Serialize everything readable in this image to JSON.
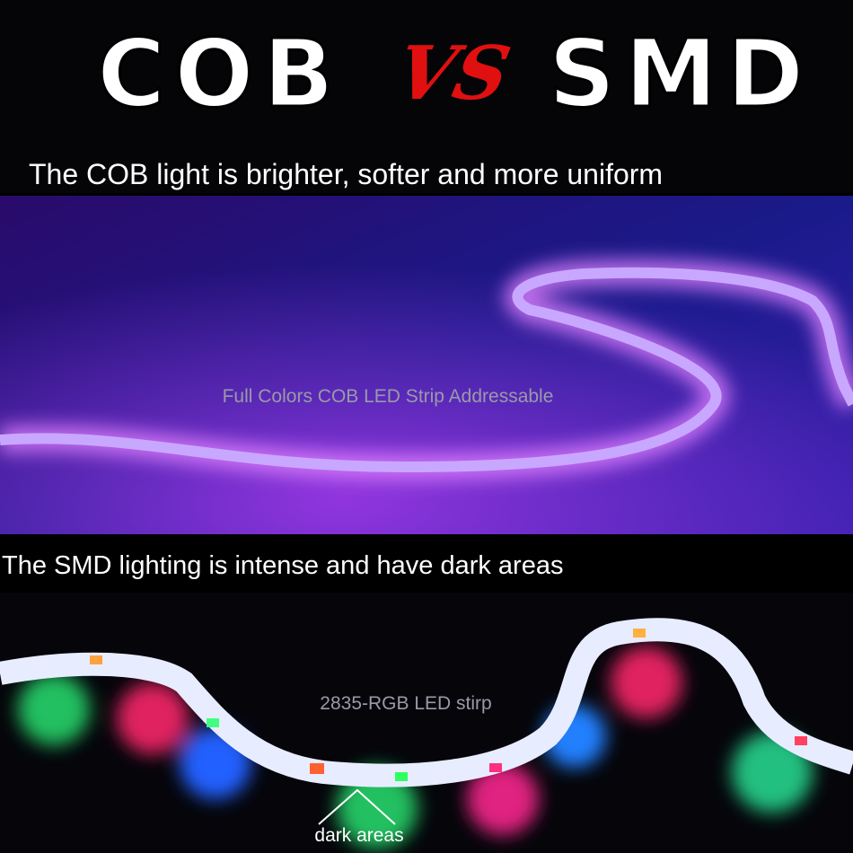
{
  "header": {
    "left": "COB",
    "vs": "VS",
    "right": "SMD"
  },
  "cob": {
    "caption": "The COB light is brighter, softer and more uniform",
    "label": "Full Colors COB LED Strip Addressable"
  },
  "smd": {
    "caption": "The SMD lighting is intense and have dark areas",
    "label": "2835-RGB LED stirp",
    "note": "dark areas"
  }
}
